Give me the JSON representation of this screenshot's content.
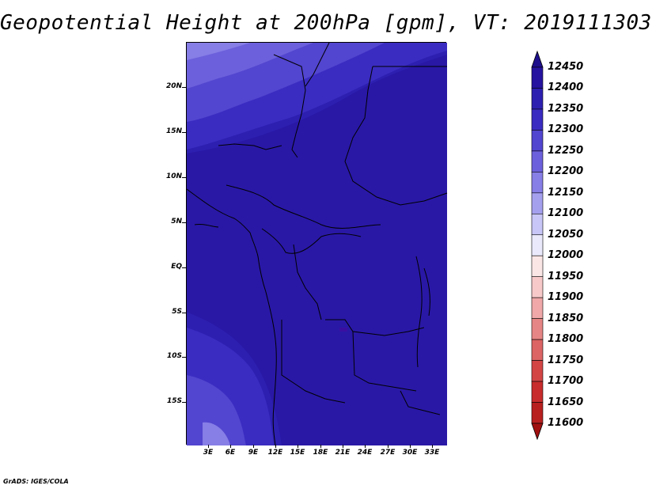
{
  "title": "Geopotential Height at 200hPa [gpm], VT: 2019111303",
  "credit": "GrADS: IGES/COLA",
  "map": {
    "lat_labels": [
      "20N",
      "15N",
      "10N",
      "5N",
      "EQ",
      "5S",
      "10S",
      "15S"
    ],
    "lon_labels": [
      "3E",
      "6E",
      "9E",
      "12E",
      "15E",
      "18E",
      "21E",
      "24E",
      "27E",
      "30E",
      "33E"
    ]
  },
  "colorbar": {
    "labels": [
      "12450",
      "12400",
      "12350",
      "12300",
      "12250",
      "12200",
      "12150",
      "12100",
      "12050",
      "12000",
      "11950",
      "11900",
      "11850",
      "11800",
      "11750",
      "11700",
      "11650",
      "11600"
    ],
    "colors": [
      "#1e0f8c",
      "#26139f",
      "#2d1fb0",
      "#3a2cc1",
      "#5245cf",
      "#6c60dc",
      "#877ee6",
      "#a5a0ee",
      "#c8c6f6",
      "#e9e9fb",
      "#fbe6e6",
      "#f7c9c9",
      "#f0a8a8",
      "#e68585",
      "#dc6464",
      "#d34545",
      "#c82c2c",
      "#b81f1f",
      "#a01010"
    ]
  }
}
